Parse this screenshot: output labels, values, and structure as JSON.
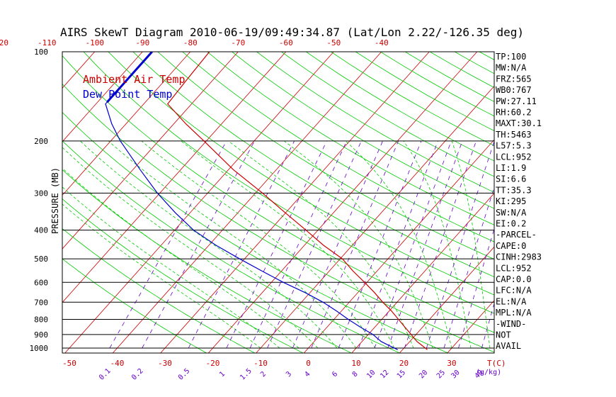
{
  "title": "AIRS SkewT Diagram 2010-06-19/09:49:34.87 (Lat/Lon 2.22/-126.35 deg)",
  "colors": {
    "temperature": "#cc0000",
    "dewpoint": "#0000cc",
    "dry_adiabat": "#00cc00",
    "moist_adiabat": "#00cc00",
    "mixing_ratio": "#6600cc",
    "isobar": "#000000",
    "isotherm": "#cc0000"
  },
  "chart_data": {
    "type": "line",
    "subtype": "skew-t log-p",
    "title": "AIRS SkewT Diagram 2010-06-19/09:49:34.87 (Lat/Lon 2.22/-126.35 deg)",
    "ylabel": "PRESSURE (MB)",
    "xlabel": "T(C)",
    "mixing_ratio_label": "(g/kg)",
    "ylim": [
      1050,
      100
    ],
    "y_scale": "log",
    "x_ticks_top": [
      -120,
      -110,
      -100,
      -90,
      -80,
      -70,
      -60,
      -50,
      -40
    ],
    "x_ticks_bottom": [
      -50,
      -40,
      -30,
      -20,
      -10,
      0,
      10,
      20,
      30
    ],
    "y_ticks": [
      100,
      200,
      300,
      400,
      500,
      600,
      700,
      800,
      900,
      1000
    ],
    "mixing_ratio_ticks": [
      "0.1",
      "0.2",
      "0.5",
      "1",
      "1.5",
      "2",
      "3",
      "4",
      "6",
      "8",
      "10",
      "12",
      "15",
      "20",
      "25",
      "30",
      "40"
    ],
    "legend": [
      "Ambient Air Temp",
      "Dew Point Temp"
    ],
    "series": [
      {
        "name": "Ambient Air Temp",
        "pressure": [
          1013,
          975,
          950,
          925,
          900,
          850,
          800,
          750,
          700,
          650,
          600,
          550,
          500,
          450,
          400,
          350,
          300,
          250,
          200,
          175,
          150,
          125,
          100
        ],
        "values": [
          25.2,
          23.0,
          21.5,
          20.2,
          19.0,
          16.3,
          13.5,
          10.5,
          7.0,
          3.5,
          -0.5,
          -5.0,
          -9.5,
          -16.0,
          -22.5,
          -30.0,
          -38.5,
          -49.0,
          -60.5,
          -67.5,
          -75.0,
          -75.5,
          -76.0
        ]
      },
      {
        "name": "Dew Point Temp",
        "pressure": [
          1013,
          975,
          950,
          925,
          900,
          850,
          800,
          750,
          700,
          650,
          600,
          550,
          500,
          450,
          400,
          350,
          300,
          250,
          200,
          175,
          150,
          100
        ],
        "values": [
          19.0,
          16.0,
          14.0,
          12.5,
          11.0,
          7.0,
          3.0,
          -1.0,
          -5.5,
          -11.0,
          -17.5,
          -24.0,
          -31.0,
          -38.5,
          -46.0,
          -53.0,
          -60.5,
          -68.5,
          -78.0,
          -83.0,
          -88.0,
          -88.0
        ]
      }
    ]
  },
  "indices": [
    "TP:100",
    "MW:N/A",
    "FRZ:565",
    "WB0:767",
    "PW:27.11",
    "RH:60.2",
    "MAXT:30.1",
    "TH:5463",
    "L57:5.3",
    "LCL:952",
    "LI:1.9",
    "SI:6.6",
    "TT:35.3",
    "KI:295",
    "SW:N/A",
    "EI:0.2",
    "-PARCEL-",
    "CAPE:0",
    "CINH:2983",
    "LCL:952",
    "CAP:0.0",
    "LFC:N/A",
    "EL:N/A",
    "MPL:N/A",
    "-WIND-",
    "NOT",
    "AVAIL"
  ]
}
